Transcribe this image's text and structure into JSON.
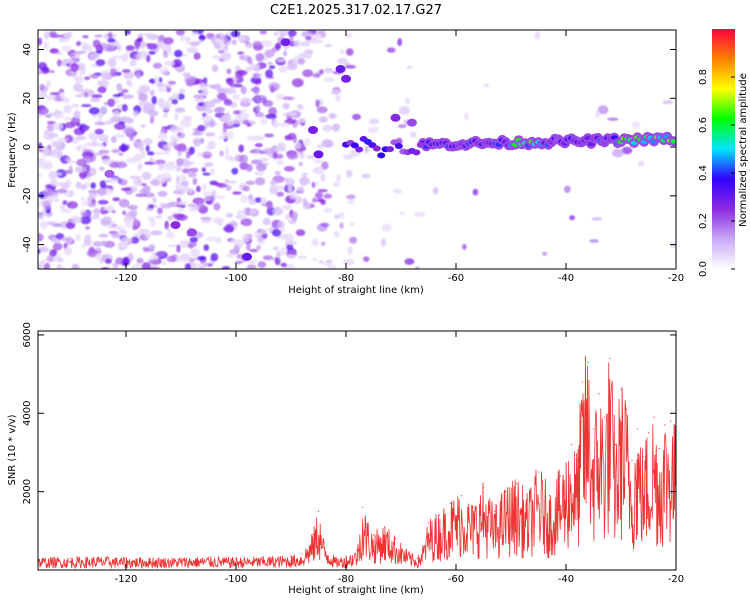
{
  "figure_title": "C2E1.2025.317.02.17.G27",
  "chart_data": [
    {
      "type": "heatmap",
      "title": "",
      "xlabel": "Height of straight line (km)",
      "ylabel": "Frequency (Hz)",
      "xlim": [
        -136,
        -20
      ],
      "ylim": [
        -50,
        48
      ],
      "x_ticks": [
        -120,
        -100,
        -80,
        -60,
        -40,
        -20
      ],
      "x_tick_labels": [
        "-120",
        "-100",
        "-80",
        "-60",
        "-40",
        "-20"
      ],
      "y_ticks": [
        -40,
        -20,
        0,
        20,
        40
      ],
      "y_tick_labels": [
        "-40",
        "-20",
        "0",
        "20",
        "40"
      ],
      "grid": false,
      "colorbar": {
        "label": "Normalized spectral amplitude",
        "range": [
          0,
          1
        ],
        "ticks": [
          0.0,
          0.2,
          0.4,
          0.6,
          0.8
        ],
        "tick_labels": [
          "0.0",
          "0.2",
          "0.4",
          "0.6",
          "0.8"
        ],
        "colormap": [
          "#ffffff",
          "#c9a8f5",
          "#8a2be2",
          "#3300ff",
          "#00e5ff",
          "#00ff00",
          "#ffff00",
          "#ff8000",
          "#ff0040"
        ]
      },
      "features": [
        {
          "description": "strong narrowband signal",
          "x_range": [
            -67,
            -20
          ],
          "frequency_hz": 1,
          "amplitude": "high"
        },
        {
          "description": "scattered noise",
          "x_range": [
            -136,
            -88
          ],
          "frequency_range": [
            -50,
            48
          ],
          "amplitude": "low"
        }
      ]
    },
    {
      "type": "line",
      "title": "",
      "xlabel": "Height of straight line (km)",
      "ylabel": "SNR (10 * v/v)",
      "xlim": [
        -136,
        -20
      ],
      "ylim": [
        0,
        6100
      ],
      "x_ticks": [
        -120,
        -100,
        -80,
        -60,
        -40,
        -20
      ],
      "x_tick_labels": [
        "-120",
        "-100",
        "-80",
        "-60",
        "-40",
        "-20"
      ],
      "y_ticks": [
        2000,
        4000,
        6000
      ],
      "y_tick_labels": [
        "2000",
        "4000",
        "6000"
      ],
      "grid": false,
      "series": [
        {
          "name": "SNR",
          "color": "#ee3333",
          "x": [
            -136,
            -130,
            -125,
            -120,
            -115,
            -110,
            -105,
            -100,
            -95,
            -90,
            -88,
            -86,
            -85,
            -84,
            -82,
            -80,
            -78,
            -77,
            -76,
            -75,
            -73,
            -71,
            -69,
            -67,
            -66,
            -65,
            -63,
            -61,
            -59,
            -57,
            -55,
            -53,
            -51,
            -49,
            -47,
            -45,
            -43,
            -41,
            -39,
            -38,
            -37,
            -36,
            -35,
            -34,
            -33,
            -32,
            -31,
            -30,
            -29,
            -28,
            -27,
            -26,
            -25,
            -24,
            -23,
            -22,
            -21,
            -20
          ],
          "values": [
            300,
            300,
            320,
            300,
            300,
            300,
            320,
            300,
            320,
            350,
            400,
            900,
            1500,
            700,
            300,
            350,
            500,
            1600,
            1200,
            900,
            1100,
            800,
            500,
            300,
            600,
            1200,
            1400,
            1700,
            1900,
            1600,
            2100,
            1500,
            2000,
            2200,
            1800,
            2500,
            1900,
            2400,
            3200,
            2800,
            4800,
            5300,
            3600,
            4500,
            3900,
            5400,
            3200,
            4600,
            4100,
            2800,
            3600,
            2900,
            3500,
            3900,
            3100,
            3700,
            3800,
            3400
          ]
        }
      ]
    }
  ]
}
